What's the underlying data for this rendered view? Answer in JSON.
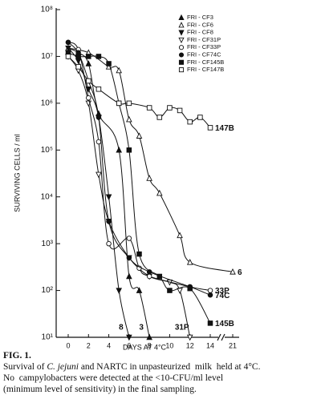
{
  "chart_data": {
    "type": "line",
    "x_label": "DAYS AT 4°C",
    "y_label": "SURVIVING CELLS / ml",
    "xlim": [
      0,
      21
    ],
    "xticks": [
      0,
      2,
      4,
      6,
      8,
      10,
      12,
      14,
      21
    ],
    "x_axis_break": true,
    "ylim": [
      10,
      100000000
    ],
    "log_y": true,
    "yticks": [
      {
        "value": 10,
        "label": "10¹"
      },
      {
        "value": 100,
        "label": "10²"
      },
      {
        "value": 1000,
        "label": "10³"
      },
      {
        "value": 10000,
        "label": "10⁴"
      },
      {
        "value": 100000,
        "label": "10⁵"
      },
      {
        "value": 1000000,
        "label": "10⁶"
      },
      {
        "value": 10000000,
        "label": "10⁷"
      },
      {
        "value": 100000000,
        "label": "10⁸"
      }
    ],
    "legend": "upper right",
    "series": [
      {
        "name": "FRI - CF3",
        "color": "#111",
        "marker": "triangle-up",
        "filled": true,
        "end_label": "3",
        "x": [
          0,
          1,
          2,
          3,
          5,
          6,
          7,
          8
        ],
        "y": [
          15000000,
          12000000,
          7000000,
          600000,
          100000,
          200,
          100,
          10
        ]
      },
      {
        "name": "FRI - CF6",
        "color": "#111",
        "marker": "triangle-up",
        "filled": false,
        "end_label": "6",
        "x": [
          0,
          2,
          4,
          5,
          6,
          7,
          8,
          9,
          11,
          12,
          21
        ],
        "y": [
          15000000,
          12000000,
          6000000,
          5000000,
          450000,
          200000,
          25000,
          12000,
          1500,
          400,
          250
        ]
      },
      {
        "name": "FRI - CF8",
        "color": "#111",
        "marker": "triangle-down",
        "filled": true,
        "end_label": "8",
        "x": [
          0,
          1,
          2,
          3,
          4,
          5,
          6
        ],
        "y": [
          15000000,
          8000000,
          2000000,
          500000,
          10000,
          100,
          10
        ]
      },
      {
        "name": "FRI - CF31P",
        "color": "#111",
        "marker": "triangle-down",
        "filled": false,
        "end_label": "31P",
        "x": [
          0,
          1,
          2,
          3,
          4,
          6,
          8,
          10,
          11,
          12
        ],
        "y": [
          10000000,
          5000000,
          1000000,
          30000,
          3000,
          500,
          200,
          150,
          100,
          10
        ]
      },
      {
        "name": "FRI - CF33P",
        "color": "#111",
        "marker": "circle",
        "filled": false,
        "end_label": "33P",
        "x": [
          0,
          1,
          2,
          3,
          4,
          6,
          7,
          8,
          12,
          14
        ],
        "y": [
          20000000,
          14000000,
          1300000,
          150000,
          1000,
          1300,
          300,
          200,
          120,
          100
        ]
      },
      {
        "name": "FRI - CF74C",
        "color": "#111",
        "marker": "circle",
        "filled": true,
        "end_label": "74C",
        "x": [
          0,
          1,
          2,
          3,
          4,
          6,
          8,
          12,
          14
        ],
        "y": [
          20000000,
          12000000,
          3000000,
          500000,
          3000,
          500,
          250,
          120,
          80
        ]
      },
      {
        "name": "FRI - CF145B",
        "color": "#111",
        "marker": "square",
        "filled": true,
        "end_label": "145B",
        "x": [
          0,
          1,
          2,
          3,
          4,
          5,
          6,
          7,
          9,
          10,
          12,
          14
        ],
        "y": [
          12000000,
          10000000,
          10000000,
          10000000,
          7000000,
          1000000,
          100000,
          600,
          200,
          100,
          110,
          20
        ]
      },
      {
        "name": "FRI - CF147B",
        "color": "#111",
        "marker": "square",
        "filled": false,
        "end_label": "147B",
        "x": [
          0,
          1,
          2,
          3,
          5,
          6,
          8,
          9,
          10,
          11,
          12,
          13,
          14
        ],
        "y": [
          10000000,
          6000000,
          3000000,
          2000000,
          1000000,
          1000000,
          800000,
          500000,
          800000,
          700000,
          400000,
          500000,
          300000
        ]
      }
    ]
  },
  "caption": {
    "figure": "FIG. 1.",
    "line1": [
      "Survival of ",
      "C. jejuni",
      " and NARTC in unpasteurized  milk  held at 4°C."
    ],
    "line2": "No  campylobacters were detected at the <10-CFU/ml level",
    "line3": "(minimum level of sensitivity) in the final sampling."
  }
}
